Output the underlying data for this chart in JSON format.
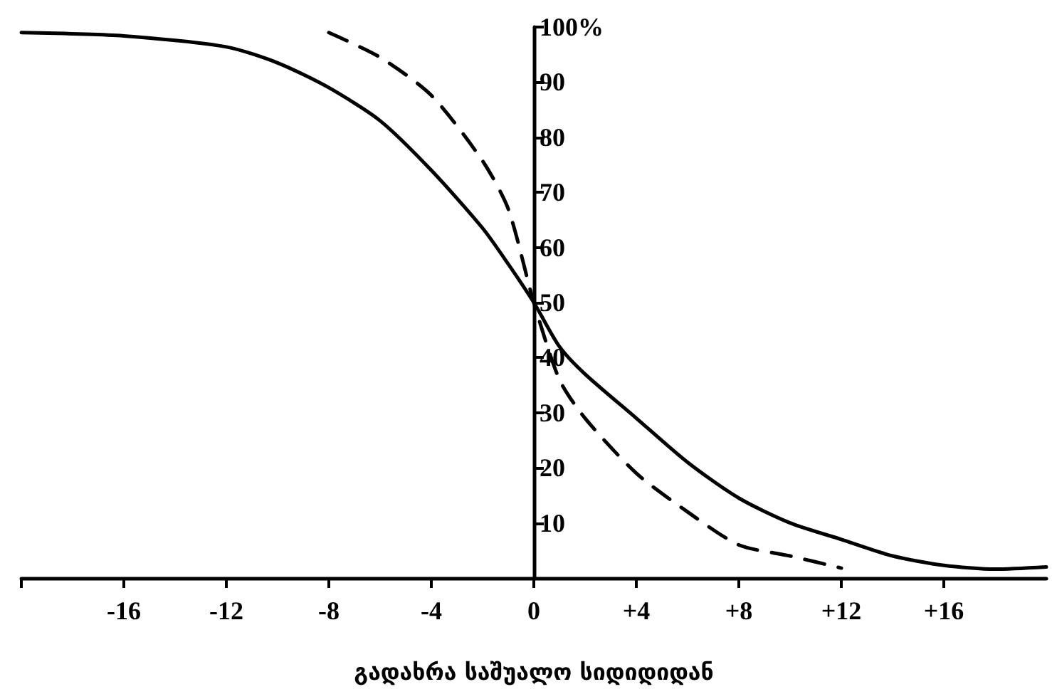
{
  "chart_data": {
    "type": "line",
    "xlabel": "გადახრა საშუალო სიდიდიდან",
    "series": [
      {
        "color": "#000000",
        "line_style": "solid",
        "x": [
          -20,
          -16,
          -12,
          -10,
          -8,
          -6,
          -4,
          -2,
          -1,
          0,
          1,
          2,
          4,
          6,
          8,
          10,
          12,
          14,
          16,
          18,
          20
        ],
        "values": [
          99,
          98.4,
          96.4,
          93.5,
          89,
          83,
          74,
          63.5,
          57,
          50,
          42,
          37,
          29,
          21,
          14.5,
          10,
          7,
          4,
          2.3,
          1.6,
          2
        ]
      },
      {
        "color": "#000000",
        "line_style": "dashed",
        "x": [
          -8,
          -6,
          -4,
          -2,
          -1,
          0,
          1,
          2,
          4,
          6,
          8,
          10,
          12
        ],
        "values": [
          99,
          94.5,
          87.6,
          75.7,
          67,
          50,
          36,
          29,
          19,
          12,
          6,
          4,
          1.8
        ]
      }
    ],
    "xlim": [
      -20,
      20
    ],
    "ylim": [
      0,
      100
    ],
    "xticks": [
      {
        "value": -20,
        "label": null
      },
      -16,
      -12,
      -8,
      -4,
      0,
      {
        "value": 4,
        "label": "+4"
      },
      {
        "value": 8,
        "label": "+8"
      },
      {
        "value": 12,
        "label": "+12"
      },
      {
        "value": 16,
        "label": "+16"
      }
    ],
    "yticks": [
      10,
      20,
      30,
      40,
      50,
      60,
      70,
      80,
      90,
      {
        "value": 100,
        "label": "100%"
      }
    ],
    "grid": false,
    "marker": "none"
  }
}
